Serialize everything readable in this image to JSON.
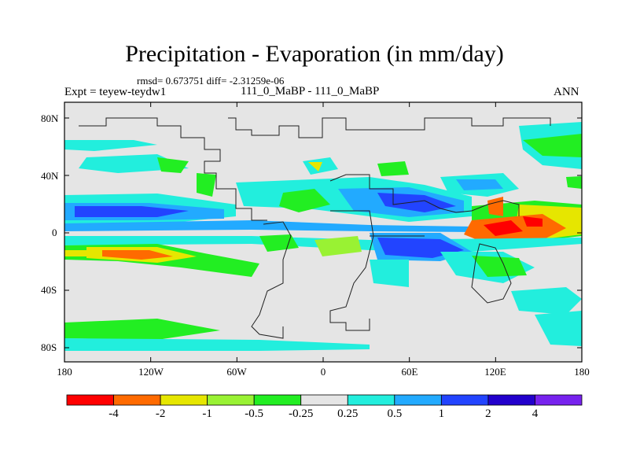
{
  "title": "Precipitation - Evaporation (in mm/day)",
  "stats": "rmsd= 0.673751  diff= -2.31259e-06",
  "experiment": "Expt = teyew-teydw1",
  "runs": "111_0_MaBP - 111_0_MaBP",
  "season": "ANN",
  "lat_labels": [
    "80N",
    "40N",
    "0",
    "40S",
    "80S"
  ],
  "lon_labels": [
    "180",
    "120W",
    "60W",
    "0",
    "60E",
    "120E",
    "180"
  ],
  "colorbar": {
    "colors": [
      "#ff0000",
      "#ff6a00",
      "#e6e600",
      "#99f233",
      "#22ee22",
      "#e5e5e5",
      "#22eedd",
      "#22aaff",
      "#2244ff",
      "#2200cc",
      "#7722ee"
    ],
    "labels": [
      "-4",
      "-2",
      "-1",
      "-0.5",
      "-0.25",
      "0.25",
      "0.5",
      "1",
      "2",
      "4"
    ]
  }
}
